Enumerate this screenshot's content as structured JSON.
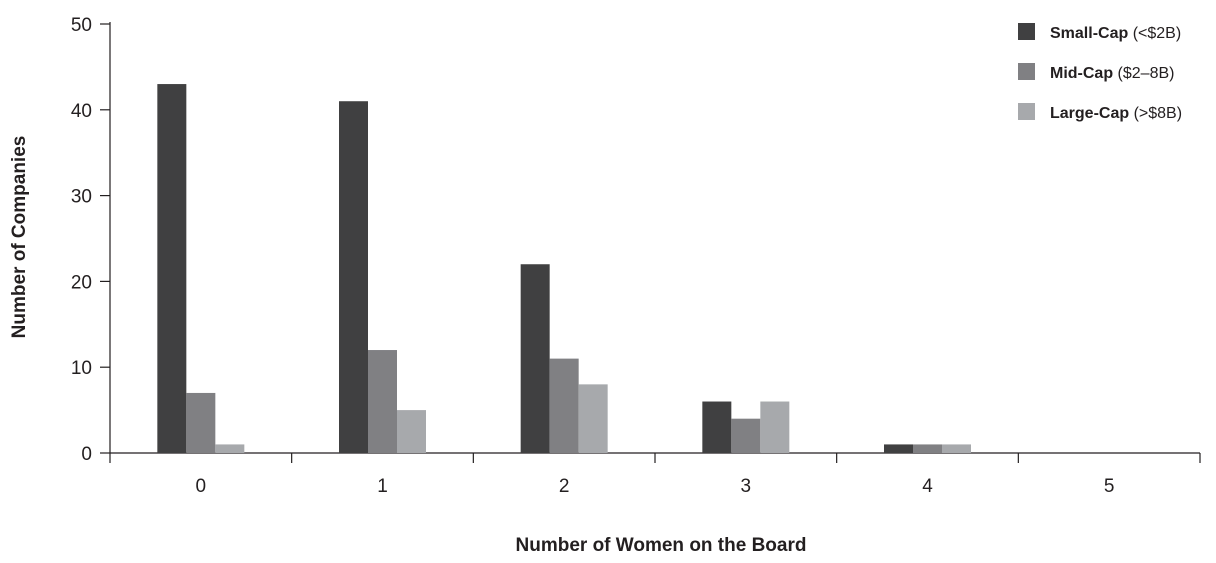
{
  "chart_data": {
    "type": "bar",
    "title": "",
    "xlabel": "Number of Women on the Board",
    "ylabel": "Number of Companies",
    "categories": [
      "0",
      "1",
      "2",
      "3",
      "4",
      "5"
    ],
    "ylim": [
      0,
      50
    ],
    "yticks": [
      0,
      10,
      20,
      30,
      40,
      50
    ],
    "grid": false,
    "legend_position": "top-right",
    "series": [
      {
        "name": "Small-Cap",
        "name_suffix": "(<$2B)",
        "color": "#404041",
        "values": [
          43,
          41,
          22,
          6,
          1,
          0
        ]
      },
      {
        "name": "Mid-Cap",
        "name_suffix": "($2–8B)",
        "color": "#808083",
        "values": [
          7,
          12,
          11,
          4,
          1,
          0
        ]
      },
      {
        "name": "Large-Cap",
        "name_suffix": "(>$8B)",
        "color": "#a7a9ac",
        "values": [
          1,
          5,
          8,
          6,
          1,
          0
        ]
      }
    ]
  }
}
